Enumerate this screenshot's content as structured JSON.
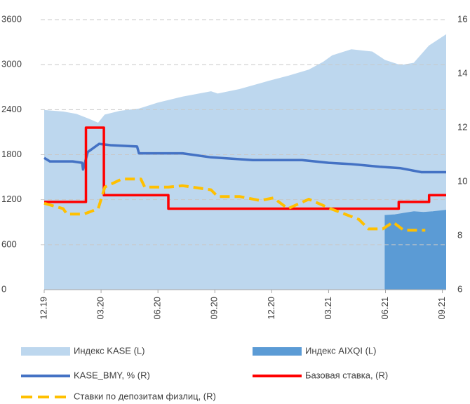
{
  "chart_data": {
    "type": "line",
    "xlim": [
      0,
      21.2
    ],
    "xticks": [
      {
        "value": 0,
        "label": "12.19"
      },
      {
        "value": 3,
        "label": "03.20"
      },
      {
        "value": 6,
        "label": "06.20"
      },
      {
        "value": 9,
        "label": "09.20"
      },
      {
        "value": 12,
        "label": "12.20"
      },
      {
        "value": 15,
        "label": "03.21"
      },
      {
        "value": 18,
        "label": "06.21"
      },
      {
        "value": 21,
        "label": "09.21"
      }
    ],
    "ylim": [
      0,
      3600
    ],
    "yticks": [
      0,
      600,
      1200,
      1800,
      2400,
      3000,
      3600
    ],
    "y2lim": [
      6,
      16
    ],
    "y2ticks": [
      6,
      8,
      10,
      12,
      14,
      16
    ],
    "grid": true,
    "series": [
      {
        "name": "Индекс KASE (L)",
        "type": "area",
        "color": "#bdd7ee",
        "x": [
          0,
          1,
          1.7,
          2.3,
          2.85,
          3.2,
          4,
          5,
          6,
          7.3,
          8.8,
          9.15,
          10.3,
          11.7,
          12.9,
          13.96,
          14.7,
          15.2,
          16.2,
          17.3,
          17.96,
          18.8,
          19.5,
          20.3,
          21.2
        ],
        "values": [
          2390,
          2370,
          2340,
          2280,
          2220,
          2330,
          2380,
          2410,
          2490,
          2570,
          2640,
          2610,
          2670,
          2770,
          2850,
          2930,
          3030,
          3120,
          3200,
          3170,
          3060,
          2990,
          3020,
          3250,
          3400
        ]
      },
      {
        "name": "Индекс AIXQI (L)",
        "type": "area",
        "color": "#5b9bd5",
        "x": [
          17.96,
          18.5,
          19,
          19.5,
          20,
          20.5,
          21.2
        ],
        "values": [
          990,
          1000,
          1020,
          1040,
          1030,
          1040,
          1060
        ]
      },
      {
        "name": "KASE_BMY, % (R)",
        "type": "line",
        "axis": "y2",
        "color": "#4472c4",
        "x": [
          0,
          0.3,
          1.5,
          2,
          2.05,
          2.3,
          2.9,
          3.5,
          4.9,
          5,
          6,
          7.3,
          8.8,
          11,
          12.5,
          13.6,
          15,
          16.2,
          17.7,
          18.8,
          19.9,
          21.2
        ],
        "values": [
          10.88,
          10.75,
          10.75,
          10.7,
          10.45,
          11.1,
          11.4,
          11.35,
          11.3,
          11.05,
          11.05,
          11.05,
          10.9,
          10.8,
          10.8,
          10.8,
          10.7,
          10.65,
          10.55,
          10.5,
          10.35,
          10.35
        ]
      },
      {
        "name": "Базовая ставка, (R)",
        "type": "line",
        "axis": "y2",
        "color": "#ff0000",
        "x": [
          0,
          2.2,
          2.2,
          3.15,
          3.15,
          6.55,
          6.55,
          18.7,
          18.7,
          20.3,
          20.3,
          21.2
        ],
        "values": [
          9.25,
          9.25,
          12,
          12,
          9.5,
          9.5,
          9.0,
          9.0,
          9.25,
          9.25,
          9.5,
          9.5
        ]
      },
      {
        "name": "Ставки по депозитам физлиц, (R)",
        "type": "line",
        "axis": "y2",
        "color": "#ffc000",
        "dashed": true,
        "x": [
          0,
          1,
          1.2,
          2.1,
          2.85,
          3.2,
          4.1,
          5.1,
          5.3,
          6.55,
          7.3,
          8.8,
          9.15,
          10.3,
          11.4,
          12.1,
          12.85,
          13.96,
          15.1,
          16.6,
          17.1,
          17.85,
          18.4,
          18.96,
          20.1
        ],
        "values": [
          9.2,
          9.0,
          8.8,
          8.8,
          9.0,
          9.8,
          10.1,
          10.1,
          9.8,
          9.8,
          9.85,
          9.7,
          9.45,
          9.45,
          9.3,
          9.4,
          9.0,
          9.35,
          9.0,
          8.6,
          8.25,
          8.25,
          8.5,
          8.2,
          8.2
        ]
      }
    ]
  }
}
